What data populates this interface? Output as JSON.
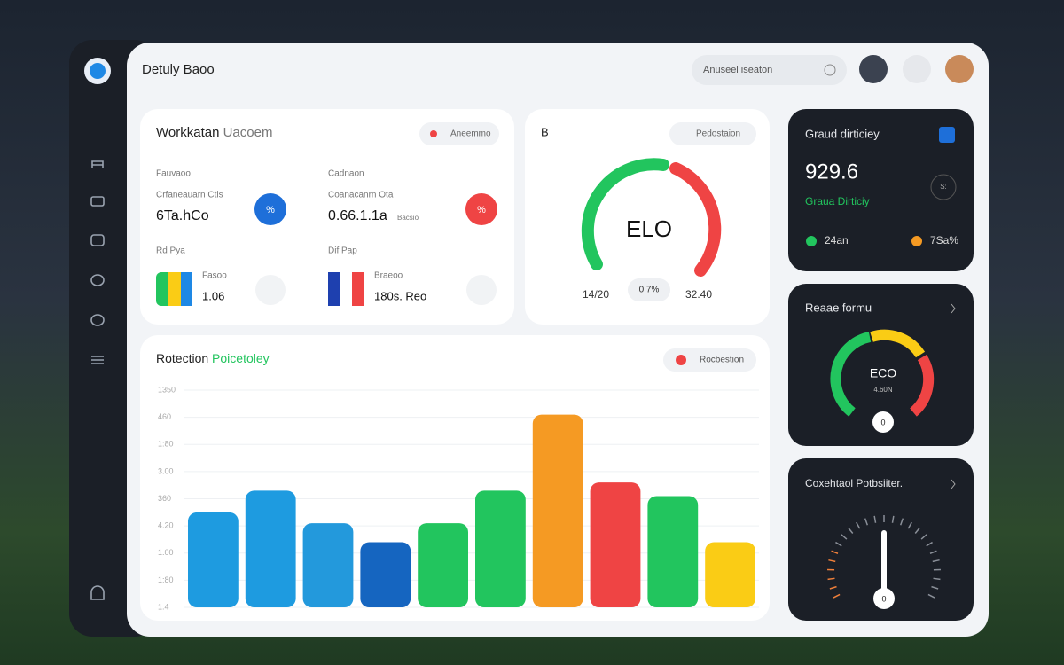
{
  "header": {
    "title": "Detuly Baoo",
    "search": "Anuseel iseaton"
  },
  "workstation": {
    "title": "Workkatan",
    "title_suffix": "Uacoem",
    "button": "Aneemmo",
    "left": {
      "label": "Fauvaoo",
      "sublabel": "Crfaneauarn Ctis",
      "value": "6Ta.hCo",
      "badge": "%",
      "flag_label": "Rd Pya",
      "flag_caption": "Fasoo",
      "flag_value": "1.06"
    },
    "right": {
      "label": "Cadnaon",
      "sublabel": "Coanacanrn Ota",
      "value": "0.66.1.1a",
      "note": "Bacsio",
      "badge": "%",
      "flag_label": "Dif Pap",
      "flag_caption": "Braeoo",
      "flag_value": "180s. Reo"
    }
  },
  "elo_card": {
    "icon": "B",
    "button": "Pedostaion",
    "center": "ELO",
    "left": "14/20",
    "badge": "0 7%",
    "right": "32.40"
  },
  "bar_chart": {
    "title": "Rotection",
    "title_accent": "Poicetoley",
    "legend": "Rocbestion",
    "ylim": [
      0,
      8
    ],
    "yticks": [
      {
        "value": 0,
        "label": "1.4"
      },
      {
        "value": 1,
        "label": "1:80"
      },
      {
        "value": 2,
        "label": "1.00"
      },
      {
        "value": 3,
        "label": "4.20"
      },
      {
        "value": 4,
        "label": "360"
      },
      {
        "value": 5,
        "label": "3.00"
      },
      {
        "value": 6,
        "label": "1:80"
      },
      {
        "value": 7,
        "label": "460"
      },
      {
        "value": 8,
        "label": "1350"
      }
    ],
    "values": [
      3.5,
      4.3,
      3.1,
      2.4,
      3.1,
      4.3,
      7.1,
      4.6,
      4.1,
      2.4
    ],
    "colors": [
      "#1e9be0",
      "#1e9be0",
      "#2399dc",
      "#1565c0",
      "#22c55e",
      "#22c55e",
      "#f59a23",
      "#ef4444",
      "#22c55e",
      "#facc15"
    ]
  },
  "dark_cards": [
    {
      "title": "Graud dirticiey",
      "value": "929.6",
      "subtitle": "Graua Dirticiy",
      "legend_a": "24an",
      "legend_b": "7Sa%",
      "icon": "S:"
    },
    {
      "title": "Reaae formu",
      "center": "ECO",
      "center_sub": "4.60N",
      "knob": "0"
    },
    {
      "title": "Coxehtaol Potbsiiter.",
      "knob": "0"
    }
  ]
}
